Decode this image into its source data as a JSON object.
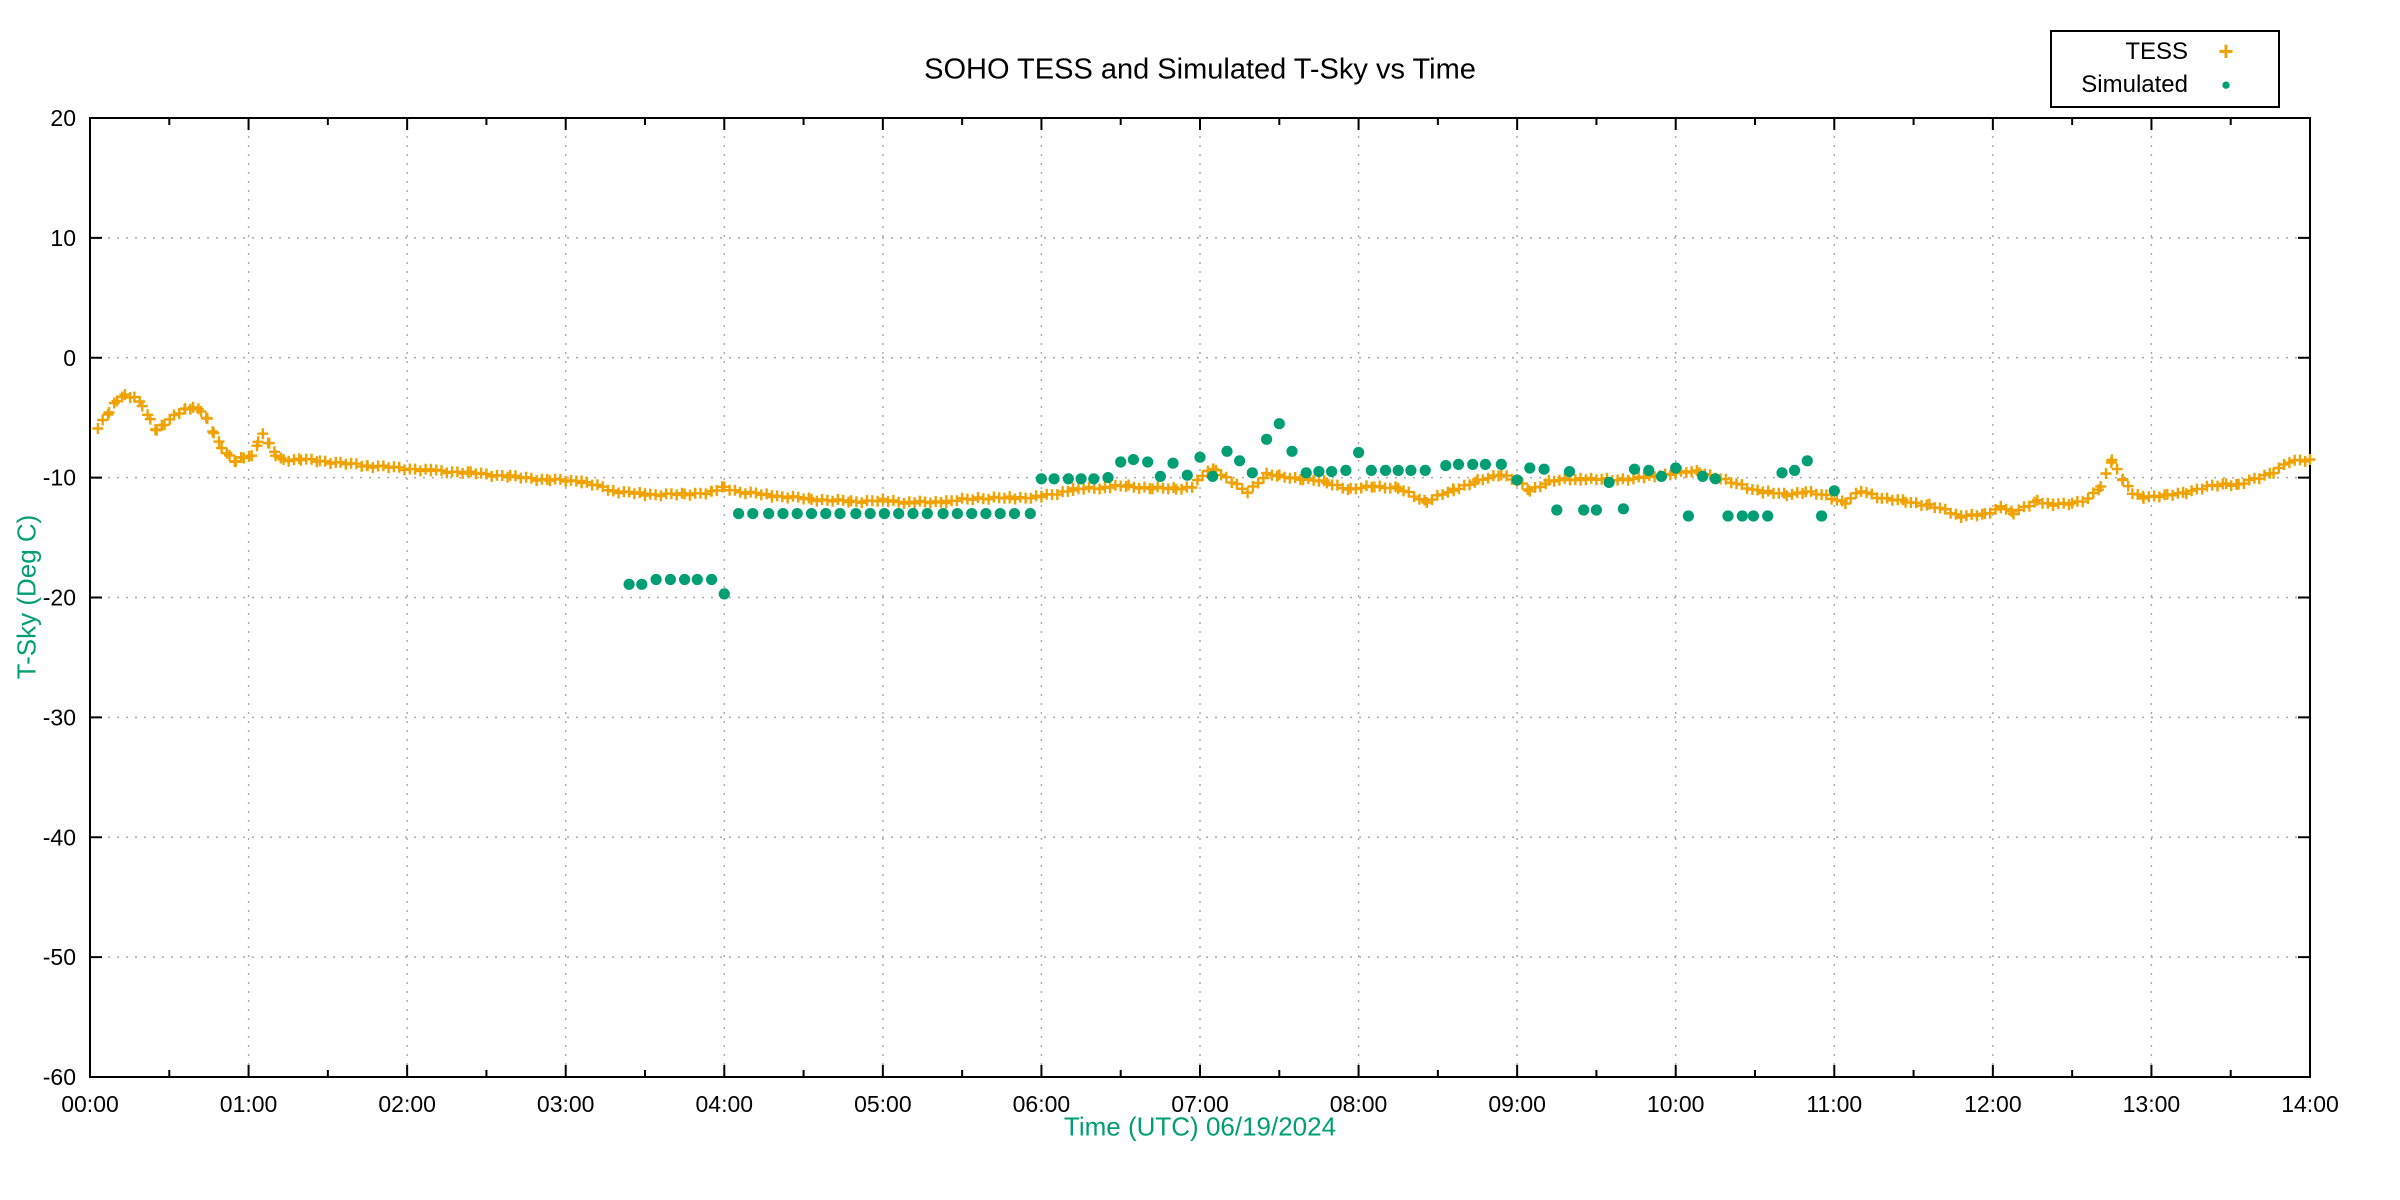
{
  "chart_data": {
    "type": "scatter",
    "title": "SOHO TESS and Simulated T-Sky vs Time",
    "xlabel": "Time (UTC)   06/19/2024",
    "ylabel": "T-Sky (Deg C)",
    "axis_label_color": "#009E73",
    "grid": true,
    "grid_color": "#a8a8a8",
    "legend_position": "top-right",
    "xlim": [
      0,
      14
    ],
    "ylim": [
      -60,
      20
    ],
    "x_ticks_hours": [
      0,
      1,
      2,
      3,
      4,
      5,
      6,
      7,
      8,
      9,
      10,
      11,
      12,
      13,
      14
    ],
    "x_tick_labels": [
      "00:00",
      "01:00",
      "02:00",
      "03:00",
      "04:00",
      "05:00",
      "06:00",
      "07:00",
      "08:00",
      "09:00",
      "10:00",
      "11:00",
      "12:00",
      "13:00",
      "14:00"
    ],
    "x_minor_tick_interval_hours": 0.5,
    "y_ticks": [
      20,
      10,
      0,
      -10,
      -20,
      -30,
      -40,
      -50,
      -60
    ],
    "series": [
      {
        "name": "TESS",
        "marker": "plus",
        "color": "#F0A202",
        "cadence_minutes": 2,
        "points": [
          [
            0.05,
            -5.9
          ],
          [
            0.08,
            -5.3
          ],
          [
            0.12,
            -4.6
          ],
          [
            0.17,
            -3.5
          ],
          [
            0.22,
            -3.1
          ],
          [
            0.28,
            -3.3
          ],
          [
            0.33,
            -4.0
          ],
          [
            0.38,
            -5.2
          ],
          [
            0.42,
            -6.0
          ],
          [
            0.47,
            -5.5
          ],
          [
            0.53,
            -4.9
          ],
          [
            0.6,
            -4.3
          ],
          [
            0.65,
            -4.1
          ],
          [
            0.7,
            -4.4
          ],
          [
            0.74,
            -5.2
          ],
          [
            0.78,
            -6.3
          ],
          [
            0.83,
            -7.4
          ],
          [
            0.88,
            -8.2
          ],
          [
            0.92,
            -8.7
          ],
          [
            0.97,
            -8.3
          ],
          [
            1.02,
            -8.2
          ],
          [
            1.06,
            -7.0
          ],
          [
            1.09,
            -6.4
          ],
          [
            1.13,
            -7.2
          ],
          [
            1.17,
            -8.1
          ],
          [
            1.22,
            -8.5
          ],
          [
            1.33,
            -8.5
          ],
          [
            1.45,
            -8.6
          ],
          [
            1.58,
            -8.8
          ],
          [
            1.75,
            -9.0
          ],
          [
            1.95,
            -9.2
          ],
          [
            2.15,
            -9.4
          ],
          [
            2.4,
            -9.6
          ],
          [
            2.65,
            -9.9
          ],
          [
            2.9,
            -10.2
          ],
          [
            3.1,
            -10.3
          ],
          [
            3.3,
            -11.1
          ],
          [
            3.5,
            -11.4
          ],
          [
            3.75,
            -11.4
          ],
          [
            3.92,
            -11.2
          ],
          [
            4.0,
            -10.8
          ],
          [
            4.1,
            -11.2
          ],
          [
            4.3,
            -11.5
          ],
          [
            4.55,
            -11.8
          ],
          [
            4.8,
            -12.0
          ],
          [
            5.0,
            -11.9
          ],
          [
            5.2,
            -12.1
          ],
          [
            5.4,
            -12.0
          ],
          [
            5.6,
            -11.7
          ],
          [
            5.8,
            -11.7
          ],
          [
            6.0,
            -11.6
          ],
          [
            6.2,
            -11.0
          ],
          [
            6.4,
            -10.8
          ],
          [
            6.55,
            -10.7
          ],
          [
            6.7,
            -10.9
          ],
          [
            6.85,
            -10.9
          ],
          [
            6.95,
            -10.8
          ],
          [
            7.05,
            -9.4
          ],
          [
            7.1,
            -9.3
          ],
          [
            7.2,
            -10.4
          ],
          [
            7.3,
            -11.2
          ],
          [
            7.42,
            -9.7
          ],
          [
            7.5,
            -9.9
          ],
          [
            7.65,
            -10.1
          ],
          [
            7.8,
            -10.4
          ],
          [
            7.95,
            -11.0
          ],
          [
            8.1,
            -10.7
          ],
          [
            8.25,
            -10.9
          ],
          [
            8.43,
            -12.0
          ],
          [
            8.6,
            -11.0
          ],
          [
            8.75,
            -10.3
          ],
          [
            8.9,
            -9.7
          ],
          [
            9.0,
            -10.3
          ],
          [
            9.08,
            -11.1
          ],
          [
            9.2,
            -10.3
          ],
          [
            9.4,
            -10.1
          ],
          [
            9.6,
            -10.2
          ],
          [
            9.8,
            -10.0
          ],
          [
            10.0,
            -9.6
          ],
          [
            10.15,
            -9.5
          ],
          [
            10.35,
            -10.4
          ],
          [
            10.55,
            -11.2
          ],
          [
            10.7,
            -11.4
          ],
          [
            10.82,
            -11.2
          ],
          [
            10.95,
            -11.5
          ],
          [
            11.07,
            -12.1
          ],
          [
            11.17,
            -11.1
          ],
          [
            11.3,
            -11.7
          ],
          [
            11.45,
            -12.0
          ],
          [
            11.6,
            -12.3
          ],
          [
            11.8,
            -13.2
          ],
          [
            11.95,
            -13.1
          ],
          [
            12.05,
            -12.4
          ],
          [
            12.13,
            -13.0
          ],
          [
            12.28,
            -11.9
          ],
          [
            12.38,
            -12.3
          ],
          [
            12.5,
            -12.1
          ],
          [
            12.6,
            -11.8
          ],
          [
            12.68,
            -10.8
          ],
          [
            12.75,
            -8.5
          ],
          [
            12.82,
            -10.2
          ],
          [
            12.88,
            -11.3
          ],
          [
            12.95,
            -11.6
          ],
          [
            13.1,
            -11.5
          ],
          [
            13.22,
            -11.2
          ],
          [
            13.35,
            -10.8
          ],
          [
            13.47,
            -10.5
          ],
          [
            13.55,
            -10.6
          ],
          [
            13.68,
            -10.0
          ],
          [
            13.77,
            -9.5
          ],
          [
            13.87,
            -8.7
          ],
          [
            14.0,
            -8.5
          ]
        ]
      },
      {
        "name": "Simulated",
        "marker": "filled-circle",
        "color": "#009E73",
        "points": [
          [
            3.4,
            -18.9
          ],
          [
            3.48,
            -18.9
          ],
          [
            3.57,
            -18.5
          ],
          [
            3.66,
            -18.5
          ],
          [
            3.75,
            -18.5
          ],
          [
            3.83,
            -18.5
          ],
          [
            3.92,
            -18.5
          ],
          [
            4.0,
            -19.7
          ],
          [
            4.09,
            -13.0
          ],
          [
            4.18,
            -13.0
          ],
          [
            4.28,
            -13.0
          ],
          [
            4.37,
            -13.0
          ],
          [
            4.46,
            -13.0
          ],
          [
            4.55,
            -13.0
          ],
          [
            4.64,
            -13.0
          ],
          [
            4.73,
            -13.0
          ],
          [
            4.83,
            -13.0
          ],
          [
            4.92,
            -13.0
          ],
          [
            5.01,
            -13.0
          ],
          [
            5.1,
            -13.0
          ],
          [
            5.19,
            -13.0
          ],
          [
            5.28,
            -13.0
          ],
          [
            5.38,
            -13.0
          ],
          [
            5.47,
            -13.0
          ],
          [
            5.56,
            -13.0
          ],
          [
            5.65,
            -13.0
          ],
          [
            5.74,
            -13.0
          ],
          [
            5.83,
            -13.0
          ],
          [
            5.93,
            -13.0
          ],
          [
            6.0,
            -10.1
          ],
          [
            6.08,
            -10.1
          ],
          [
            6.17,
            -10.1
          ],
          [
            6.25,
            -10.1
          ],
          [
            6.33,
            -10.1
          ],
          [
            6.42,
            -10.0
          ],
          [
            6.5,
            -8.7
          ],
          [
            6.58,
            -8.5
          ],
          [
            6.67,
            -8.7
          ],
          [
            6.75,
            -9.9
          ],
          [
            6.83,
            -8.8
          ],
          [
            6.92,
            -9.8
          ],
          [
            7.0,
            -8.3
          ],
          [
            7.08,
            -9.9
          ],
          [
            7.17,
            -7.8
          ],
          [
            7.25,
            -8.6
          ],
          [
            7.33,
            -9.6
          ],
          [
            7.42,
            -6.8
          ],
          [
            7.5,
            -5.5
          ],
          [
            7.58,
            -7.8
          ],
          [
            7.67,
            -9.6
          ],
          [
            7.75,
            -9.5
          ],
          [
            7.83,
            -9.5
          ],
          [
            7.92,
            -9.4
          ],
          [
            8.0,
            -7.9
          ],
          [
            8.08,
            -9.4
          ],
          [
            8.17,
            -9.4
          ],
          [
            8.25,
            -9.4
          ],
          [
            8.33,
            -9.4
          ],
          [
            8.42,
            -9.4
          ],
          [
            8.55,
            -9.0
          ],
          [
            8.63,
            -8.9
          ],
          [
            8.72,
            -8.9
          ],
          [
            8.8,
            -8.9
          ],
          [
            8.9,
            -8.9
          ],
          [
            9.0,
            -10.2
          ],
          [
            9.08,
            -9.2
          ],
          [
            9.17,
            -9.3
          ],
          [
            9.25,
            -12.7
          ],
          [
            9.33,
            -9.5
          ],
          [
            9.42,
            -12.7
          ],
          [
            9.5,
            -12.7
          ],
          [
            9.58,
            -10.4
          ],
          [
            9.67,
            -12.6
          ],
          [
            9.74,
            -9.3
          ],
          [
            9.83,
            -9.4
          ],
          [
            9.91,
            -9.9
          ],
          [
            10.0,
            -9.2
          ],
          [
            10.08,
            -13.2
          ],
          [
            10.17,
            -9.9
          ],
          [
            10.25,
            -10.1
          ],
          [
            10.33,
            -13.2
          ],
          [
            10.42,
            -13.2
          ],
          [
            10.49,
            -13.2
          ],
          [
            10.58,
            -13.2
          ],
          [
            10.67,
            -9.6
          ],
          [
            10.75,
            -9.4
          ],
          [
            10.83,
            -8.6
          ],
          [
            10.92,
            -13.2
          ],
          [
            11.0,
            -11.1
          ]
        ]
      }
    ]
  }
}
